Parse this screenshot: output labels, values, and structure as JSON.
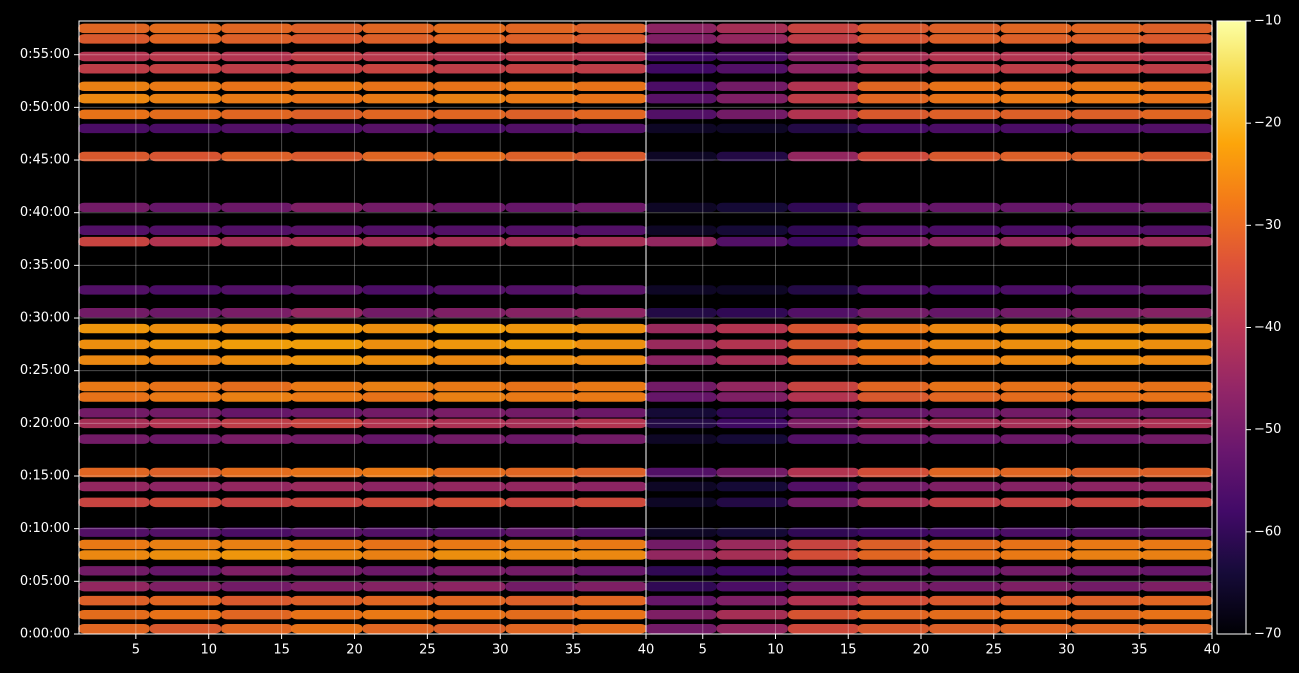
{
  "chart_data": {
    "type": "heatmap",
    "colormap": "inferno",
    "grid": true,
    "xlim": [
      1.1,
      40
    ],
    "ylim": [
      0,
      3492
    ],
    "x": [
      3.5,
      8.4,
      13.3,
      18.1,
      23,
      27.9,
      32.8,
      37.6
    ],
    "y": [
      30,
      110,
      190,
      270,
      360,
      450,
      510,
      580,
      750,
      840,
      920,
      1110,
      1200,
      1260,
      1350,
      1410,
      1560,
      1650,
      1740,
      1830,
      1960,
      2235,
      2300,
      2430,
      2720,
      2880,
      2960,
      3050,
      3120,
      3220,
      3290,
      3390,
      3450
    ],
    "yticks": [
      {
        "value": 0,
        "label": "0:00:00"
      },
      {
        "value": 300,
        "label": "0:05:00"
      },
      {
        "value": 600,
        "label": "0:10:00"
      },
      {
        "value": 900,
        "label": "0:15:00"
      },
      {
        "value": 1200,
        "label": "0:20:00"
      },
      {
        "value": 1500,
        "label": "0:25:00"
      },
      {
        "value": 1800,
        "label": "0:30:00"
      },
      {
        "value": 2100,
        "label": "0:35:00"
      },
      {
        "value": 2400,
        "label": "0:40:00"
      },
      {
        "value": 2700,
        "label": "0:45:00"
      },
      {
        "value": 3000,
        "label": "0:50:00"
      },
      {
        "value": 3300,
        "label": "0:55:00"
      }
    ],
    "clim": [
      -70,
      -10
    ],
    "cticks": [
      {
        "value": -70,
        "label": "−70"
      },
      {
        "value": -60,
        "label": "−60"
      },
      {
        "value": -50,
        "label": "−50"
      },
      {
        "value": -40,
        "label": "−40"
      },
      {
        "value": -30,
        "label": "−30"
      },
      {
        "value": -20,
        "label": "−20"
      },
      {
        "value": -10,
        "label": "−10"
      }
    ],
    "panels": [
      {
        "xticks": [
          5,
          10,
          15,
          20,
          25,
          30,
          35,
          40
        ],
        "values": [
          [
            -30,
            -32,
            -30,
            -28,
            -30,
            -31,
            -30,
            -29
          ],
          [
            -29,
            -28,
            -30,
            -28,
            -27,
            -28,
            -29,
            -28
          ],
          [
            -31,
            -30,
            -32,
            -31,
            -30,
            -30,
            -31,
            -30
          ],
          [
            -45,
            -48,
            -50,
            -48,
            -47,
            -46,
            -50,
            -48
          ],
          [
            -50,
            -52,
            -48,
            -50,
            -51,
            -49,
            -50,
            -52
          ],
          [
            -25,
            -24,
            -23,
            -25,
            -26,
            -24,
            -25,
            -25
          ],
          [
            -27,
            -26,
            -26,
            -27,
            -28,
            -27,
            -26,
            -27
          ],
          [
            -55,
            -55,
            -56,
            -54,
            -55,
            -55,
            -53,
            -55
          ],
          [
            -36,
            -35,
            -37,
            -36,
            -35,
            -34,
            -36,
            -35
          ],
          [
            -45,
            -46,
            -45,
            -44,
            -46,
            -45,
            -45,
            -46
          ],
          [
            -30,
            -31,
            -29,
            -28,
            -27,
            -29,
            -30,
            -31
          ],
          [
            -50,
            -51,
            -49,
            -50,
            -52,
            -50,
            -51,
            -50
          ],
          [
            -42,
            -40,
            -38,
            -36,
            -40,
            -41,
            -42,
            -40
          ],
          [
            -50,
            -50,
            -52,
            -51,
            -50,
            -49,
            -50,
            -51
          ],
          [
            -28,
            -27,
            -26,
            -27,
            -28,
            -26,
            -27,
            -27
          ],
          [
            -27,
            -28,
            -29,
            -27,
            -26,
            -27,
            -28,
            -27
          ],
          [
            -25,
            -26,
            -24,
            -23,
            -24,
            -25,
            -24,
            -25
          ],
          [
            -24,
            -23,
            -22,
            -22,
            -24,
            -23,
            -22,
            -24
          ],
          [
            -23,
            -24,
            -25,
            -23,
            -24,
            -22,
            -23,
            -24
          ],
          [
            -50,
            -51,
            -49,
            -45,
            -50,
            -48,
            -47,
            -46
          ],
          [
            -55,
            -56,
            -55,
            -54,
            -56,
            -55,
            -55,
            -54
          ],
          [
            -36,
            -40,
            -42,
            -41,
            -42,
            -42,
            -42,
            -42
          ],
          [
            -55,
            -55,
            -55,
            -54,
            -55,
            -55,
            -55,
            -55
          ],
          [
            -50,
            -52,
            -51,
            -48,
            -50,
            -51,
            -52,
            -51
          ],
          [
            -32,
            -33,
            -31,
            -32,
            -30,
            -29,
            -31,
            -32
          ],
          [
            -56,
            -56,
            -55,
            -55,
            -54,
            -56,
            -55,
            -55
          ],
          [
            -28,
            -29,
            -30,
            -31,
            -30,
            -30,
            -31,
            -30
          ],
          [
            -25,
            -26,
            -27,
            -28,
            -27,
            -26,
            -27,
            -28
          ],
          [
            -26,
            -27,
            -28,
            -27,
            -28,
            -28,
            -27,
            -28
          ],
          [
            -38,
            -37,
            -38,
            -37,
            -36,
            -38,
            -37,
            -38
          ],
          [
            -40,
            -39,
            -40,
            -38,
            -39,
            -40,
            -39,
            -40
          ],
          [
            -32,
            -30,
            -31,
            -32,
            -31,
            -30,
            -31,
            -32
          ],
          [
            -30,
            -29,
            -30,
            -31,
            -30,
            -29,
            -30,
            -31
          ]
        ]
      },
      {
        "xticks": [
          5,
          10,
          15,
          20,
          25,
          30,
          35,
          40
        ],
        "values": [
          [
            -50,
            -45,
            -35,
            -32,
            -31,
            -30,
            -30,
            -30
          ],
          [
            -48,
            -42,
            -33,
            -30,
            -29,
            -28,
            -29,
            -28
          ],
          [
            -52,
            -48,
            -40,
            -34,
            -32,
            -31,
            -31,
            -30
          ],
          [
            -60,
            -56,
            -52,
            -50,
            -50,
            -48,
            -50,
            -48
          ],
          [
            -60,
            -58,
            -54,
            -52,
            -52,
            -50,
            -51,
            -52
          ],
          [
            -45,
            -42,
            -34,
            -30,
            -28,
            -27,
            -26,
            -26
          ],
          [
            -50,
            -44,
            -36,
            -31,
            -29,
            -28,
            -27,
            -27
          ],
          [
            -66,
            -64,
            -60,
            -58,
            -57,
            -56,
            -55,
            -55
          ],
          [
            -66,
            -62,
            -50,
            -42,
            -38,
            -37,
            -36,
            -36
          ],
          [
            -66,
            -64,
            -55,
            -50,
            -48,
            -47,
            -46,
            -46
          ],
          [
            -55,
            -50,
            -40,
            -34,
            -30,
            -30,
            -31,
            -31
          ],
          [
            -66,
            -64,
            -55,
            -52,
            -52,
            -51,
            -51,
            -50
          ],
          [
            -62,
            -58,
            -48,
            -42,
            -42,
            -42,
            -42,
            -41
          ],
          [
            -64,
            -60,
            -54,
            -52,
            -51,
            -50,
            -51,
            -51
          ],
          [
            -52,
            -48,
            -40,
            -32,
            -30,
            -29,
            -28,
            -28
          ],
          [
            -50,
            -45,
            -36,
            -30,
            -28,
            -28,
            -28,
            -28
          ],
          [
            -46,
            -42,
            -32,
            -28,
            -26,
            -25,
            -24,
            -25
          ],
          [
            -44,
            -40,
            -32,
            -27,
            -25,
            -24,
            -23,
            -24
          ],
          [
            -44,
            -40,
            -33,
            -27,
            -25,
            -24,
            -24,
            -24
          ],
          [
            -62,
            -60,
            -55,
            -50,
            -52,
            -50,
            -48,
            -47
          ],
          [
            -66,
            -66,
            -62,
            -56,
            -57,
            -56,
            -55,
            -54
          ],
          [
            -45,
            -55,
            -58,
            -48,
            -46,
            -44,
            -43,
            -43
          ],
          [
            -66,
            -64,
            -60,
            -56,
            -56,
            -56,
            -55,
            -55
          ],
          [
            -66,
            -64,
            -60,
            -52,
            -52,
            -52,
            -52,
            -51
          ],
          [
            -66,
            -62,
            -45,
            -35,
            -32,
            -31,
            -31,
            -32
          ],
          [
            -66,
            -66,
            -62,
            -57,
            -56,
            -56,
            -55,
            -55
          ],
          [
            -55,
            -50,
            -40,
            -32,
            -31,
            -31,
            -31,
            -30
          ],
          [
            -54,
            -48,
            -38,
            -30,
            -28,
            -27,
            -27,
            -28
          ],
          [
            -56,
            -50,
            -40,
            -30,
            -28,
            -28,
            -27,
            -28
          ],
          [
            -58,
            -55,
            -46,
            -40,
            -38,
            -38,
            -37,
            -38
          ],
          [
            -58,
            -56,
            -48,
            -42,
            -40,
            -40,
            -39,
            -40
          ],
          [
            -48,
            -45,
            -38,
            -33,
            -31,
            -31,
            -31,
            -32
          ],
          [
            -46,
            -42,
            -36,
            -32,
            -31,
            -30,
            -30,
            -31
          ]
        ]
      }
    ]
  }
}
